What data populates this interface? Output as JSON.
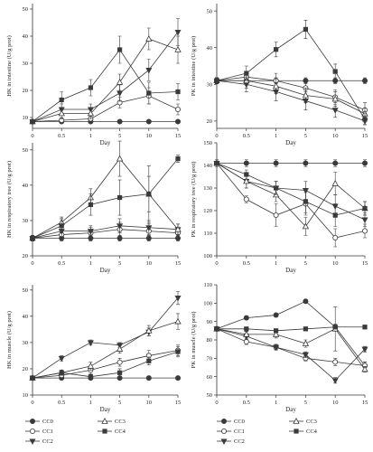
{
  "chart_data": [
    {
      "type": "line",
      "panel": "top-left",
      "ylabel": "HK in intestine (U/g prot)",
      "xlabel": "Day",
      "categories": [
        "0",
        "0.5",
        "1",
        "5",
        "10",
        "15"
      ],
      "yticks": [
        10,
        20,
        30,
        40,
        50
      ],
      "ylim": [
        6,
        52
      ],
      "series": [
        {
          "name": "CC0",
          "values": [
            8.5,
            8.5,
            8.5,
            8.5,
            8.5,
            8.5
          ],
          "errors": [
            0.5,
            0.5,
            0.5,
            0.5,
            0.5,
            0.5
          ]
        },
        {
          "name": "CC1",
          "values": [
            8.5,
            9.0,
            9.5,
            15.5,
            18.0,
            13.0
          ],
          "errors": [
            0.6,
            1.0,
            1.0,
            2.0,
            3.0,
            2.0
          ]
        },
        {
          "name": "CC2",
          "values": [
            8.5,
            13.0,
            13.0,
            19.0,
            27.5,
            41.5
          ],
          "errors": [
            0.6,
            2.0,
            2.0,
            3.0,
            4.0,
            5.0
          ]
        },
        {
          "name": "CC3",
          "values": [
            8.5,
            11.5,
            11.5,
            23.0,
            39.0,
            35.0
          ],
          "errors": [
            0.6,
            2.0,
            2.0,
            3.0,
            4.0,
            5.0
          ]
        },
        {
          "name": "CC4",
          "values": [
            8.5,
            16.5,
            21.0,
            35.0,
            19.0,
            19.5
          ],
          "errors": [
            0.6,
            3.0,
            3.0,
            5.0,
            4.0,
            3.0
          ]
        }
      ]
    },
    {
      "type": "line",
      "panel": "top-right",
      "ylabel": "PK in intestine (U/g prot)",
      "xlabel": "Day",
      "categories": [
        "0",
        "0.5",
        "1",
        "5",
        "10",
        "15"
      ],
      "yticks": [
        20,
        30,
        40,
        50
      ],
      "ylim": [
        18,
        52
      ],
      "series": [
        {
          "name": "CC0",
          "values": [
            31,
            31,
            31,
            31,
            31,
            31
          ],
          "errors": [
            0.8,
            0.8,
            0.8,
            0.8,
            0.8,
            0.8
          ]
        },
        {
          "name": "CC1",
          "values": [
            31,
            32,
            31,
            29,
            26.5,
            23
          ],
          "errors": [
            0.8,
            1.5,
            2.0,
            2.0,
            2.0,
            2.0
          ]
        },
        {
          "name": "CC2",
          "values": [
            31,
            30,
            28,
            25.5,
            23,
            20
          ],
          "errors": [
            0.8,
            2.0,
            2.5,
            2.5,
            2.0,
            1.0
          ]
        },
        {
          "name": "CC3",
          "values": [
            31,
            31,
            29.5,
            27,
            26,
            22
          ],
          "errors": [
            0.8,
            2.0,
            2.0,
            2.0,
            2.0,
            1.5
          ]
        },
        {
          "name": "CC4",
          "values": [
            31,
            33,
            39.5,
            45,
            33.5,
            20.5
          ],
          "errors": [
            0.8,
            2.0,
            2.0,
            2.5,
            2.0,
            1.5
          ]
        }
      ]
    },
    {
      "type": "line",
      "panel": "middle-left",
      "ylabel": "HK in respiratory tree (U/g prot)",
      "xlabel": "Day",
      "categories": [
        "0",
        "0.5",
        "1",
        "5",
        "10",
        "15"
      ],
      "yticks": [
        20,
        30,
        40,
        50
      ],
      "ylim": [
        20,
        52
      ],
      "series": [
        {
          "name": "CC0",
          "values": [
            25,
            25,
            25,
            25,
            25,
            25
          ],
          "errors": [
            0.8,
            0.8,
            0.8,
            0.8,
            0.8,
            0.8
          ]
        },
        {
          "name": "CC1",
          "values": [
            25,
            26,
            26.5,
            27.5,
            27,
            26.5
          ],
          "errors": [
            0.8,
            1.5,
            1.5,
            2.0,
            2.0,
            1.5
          ]
        },
        {
          "name": "CC2",
          "values": [
            25,
            27,
            27,
            28.5,
            28,
            27.5
          ],
          "errors": [
            0.8,
            1.5,
            1.5,
            2.0,
            2.0,
            1.5
          ]
        },
        {
          "name": "CC3",
          "values": [
            25,
            29.5,
            36.5,
            47.5,
            37.5,
            27.5
          ],
          "errors": [
            0.8,
            1.5,
            2.5,
            5.0,
            5.0,
            1.5
          ]
        },
        {
          "name": "CC4",
          "values": [
            25,
            28.5,
            34.5,
            36.5,
            37.5,
            47.5
          ],
          "errors": [
            0.8,
            2.0,
            3.0,
            5.0,
            8.0,
            1.0
          ]
        }
      ]
    },
    {
      "type": "line",
      "panel": "middle-right",
      "ylabel": "PK in respiratory tree (U/g prot)",
      "xlabel": "Day",
      "categories": [
        "0",
        "0.5",
        "1",
        "5",
        "10",
        "15"
      ],
      "yticks": [
        100,
        110,
        120,
        130,
        140,
        150
      ],
      "ylim": [
        100,
        150
      ],
      "series": [
        {
          "name": "CC0",
          "values": [
            141,
            141,
            141,
            141,
            141,
            141
          ],
          "errors": [
            1.5,
            1.5,
            1.5,
            1.5,
            1.5,
            1.5
          ]
        },
        {
          "name": "CC1",
          "values": [
            141,
            125,
            118,
            123,
            108,
            111
          ],
          "errors": [
            1.5,
            1.5,
            5.0,
            5.0,
            4.0,
            3.0
          ]
        },
        {
          "name": "CC2",
          "values": [
            141,
            133,
            130,
            129,
            122,
            116
          ],
          "errors": [
            1.5,
            3.0,
            3.0,
            4.0,
            5.0,
            3.0
          ]
        },
        {
          "name": "CC3",
          "values": [
            141,
            133,
            127,
            113,
            132,
            121
          ],
          "errors": [
            1.5,
            3.0,
            3.0,
            4.0,
            5.0,
            3.0
          ]
        },
        {
          "name": "CC4",
          "values": [
            141,
            136,
            130,
            124,
            118,
            121
          ],
          "errors": [
            1.5,
            2.0,
            3.0,
            5.0,
            5.0,
            3.0
          ]
        }
      ]
    },
    {
      "type": "line",
      "panel": "bottom-left",
      "ylabel": "HK in muscle (U/g prot)",
      "xlabel": "Day",
      "categories": [
        "0",
        "0.5",
        "1",
        "5",
        "10",
        "15"
      ],
      "yticks": [
        10,
        20,
        30,
        40,
        50
      ],
      "ylim": [
        10,
        52
      ],
      "series": [
        {
          "name": "CC0",
          "values": [
            16.5,
            16.5,
            16.5,
            16.5,
            16.5,
            16.5
          ],
          "errors": [
            0.6,
            0.6,
            0.6,
            0.6,
            0.6,
            0.6
          ]
        },
        {
          "name": "CC1",
          "values": [
            16.5,
            17.5,
            19.5,
            22.5,
            25.0,
            27.0
          ],
          "errors": [
            0.6,
            1.0,
            1.5,
            1.5,
            2.0,
            2.0
          ]
        },
        {
          "name": "CC2",
          "values": [
            16.5,
            24.0,
            30.0,
            29.0,
            34.0,
            47.0
          ],
          "errors": [
            0.6,
            1.0,
            1.0,
            1.0,
            1.5,
            2.5
          ]
        },
        {
          "name": "CC3",
          "values": [
            16.5,
            18.5,
            21.0,
            27.5,
            34.5,
            38.0
          ],
          "errors": [
            0.6,
            1.0,
            1.5,
            1.5,
            2.0,
            3.0
          ]
        },
        {
          "name": "CC4",
          "values": [
            16.5,
            18.5,
            17.0,
            18.5,
            23.0,
            26.5
          ],
          "errors": [
            0.6,
            1.0,
            1.0,
            1.5,
            1.5,
            2.0
          ]
        }
      ]
    },
    {
      "type": "line",
      "panel": "bottom-right",
      "ylabel": "PK in muscle (U/g prot)",
      "xlabel": "Day",
      "categories": [
        "0",
        "0.5",
        "1",
        "5",
        "10",
        "15"
      ],
      "yticks": [
        50,
        60,
        70,
        80,
        90,
        100,
        110
      ],
      "ylim": [
        50,
        110
      ],
      "series": [
        {
          "name": "CC0",
          "values": [
            86,
            92,
            93.5,
            101,
            87,
            66
          ],
          "errors": [
            0.8,
            1.0,
            1.0,
            1.0,
            1.5,
            2.0
          ]
        },
        {
          "name": "CC1",
          "values": [
            86,
            79,
            76,
            70,
            68,
            66
          ],
          "errors": [
            0.8,
            1.5,
            1.5,
            1.5,
            2.0,
            2.0
          ]
        },
        {
          "name": "CC2",
          "values": [
            86,
            82,
            76,
            72,
            58,
            75
          ],
          "errors": [
            0.8,
            1.5,
            1.5,
            1.5,
            1.5,
            1.5
          ]
        },
        {
          "name": "CC3",
          "values": [
            86,
            83,
            83,
            78,
            86,
            64
          ],
          "errors": [
            0.8,
            1.5,
            2.0,
            2.0,
            12.0,
            1.5
          ]
        },
        {
          "name": "CC4",
          "values": [
            86,
            86,
            85,
            86,
            87,
            87
          ],
          "errors": [
            0.8,
            1.0,
            1.0,
            1.0,
            1.0,
            1.0
          ]
        }
      ]
    }
  ],
  "legend_left": [
    {
      "name": "CC0",
      "marker": "filled-circle"
    },
    {
      "name": "CC3",
      "marker": "open-triangle"
    },
    {
      "name": "CC1",
      "marker": "open-circle"
    },
    {
      "name": "CC4",
      "marker": "filled-square"
    },
    {
      "name": "CC2",
      "marker": "filled-triangle-down"
    }
  ],
  "legend_right": [
    {
      "name": "CC0",
      "marker": "filled-circle"
    },
    {
      "name": "CC3",
      "marker": "open-triangle"
    },
    {
      "name": "CC1",
      "marker": "open-circle"
    },
    {
      "name": "CC4",
      "marker": "filled-square"
    },
    {
      "name": "CC2",
      "marker": "filled-triangle-down"
    }
  ],
  "colors": {
    "line": "#3a3a3a",
    "axis": "#333333"
  }
}
